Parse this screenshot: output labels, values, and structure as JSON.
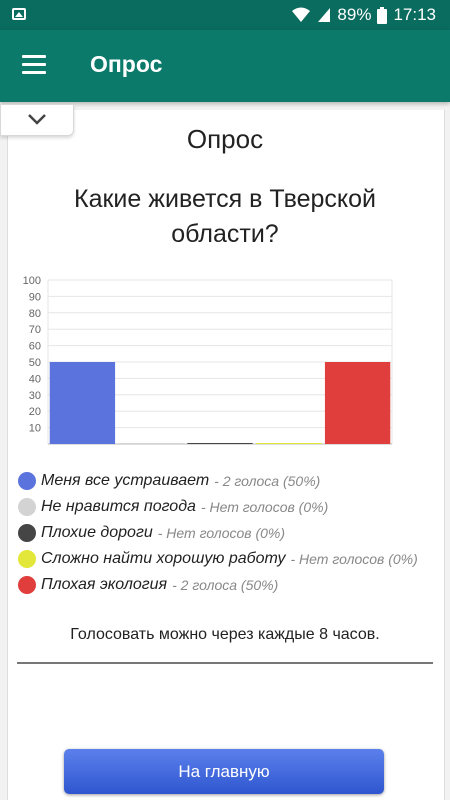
{
  "status_bar": {
    "battery": "89%",
    "time": "17:13"
  },
  "appbar": {
    "title": "Опрос"
  },
  "poll": {
    "title": "Опрос",
    "question": "Какие живется в Тверской области?",
    "options": [
      {
        "label": "Меня все устраивает",
        "count": "- 2 голоса (50%)",
        "color": "#5b74dd"
      },
      {
        "label": "Не нравится погода",
        "count": "- Нет голосов (0%)",
        "color": "#d3d3d3"
      },
      {
        "label": "Плохие дороги",
        "count": "- Нет голосов (0%)",
        "color": "#454545"
      },
      {
        "label": "Сложно найти хорошую работу",
        "count": "- Нет голосов (0%)",
        "color": "#e3e73a"
      },
      {
        "label": "Плохая экология",
        "count": "- 2 голоса (50%)",
        "color": "#e03d3d"
      }
    ],
    "note": "Голосовать можно через каждые 8 часов.",
    "home_button": "На главную"
  },
  "chart_data": {
    "type": "bar",
    "categories": [
      "Меня все устраивает",
      "Не нравится погода",
      "Плохие дороги",
      "Сложно найти хорошую работу",
      "Плохая экология"
    ],
    "values": [
      50,
      0,
      0,
      0,
      50
    ],
    "colors": [
      "#5b74dd",
      "#d3d3d3",
      "#454545",
      "#e3e73a",
      "#e03d3d"
    ],
    "yticks": [
      10,
      20,
      30,
      40,
      50,
      60,
      70,
      80,
      90,
      100
    ],
    "ylim": [
      0,
      100
    ],
    "grid": true,
    "xlabel": "",
    "ylabel": ""
  }
}
